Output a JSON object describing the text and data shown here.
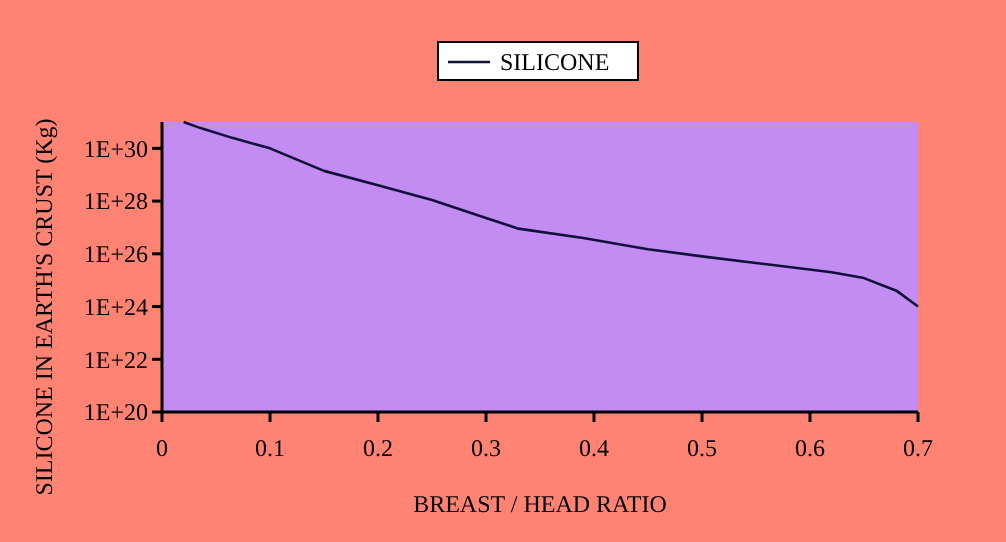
{
  "chart_data": {
    "type": "line",
    "xlabel": "BREAST / HEAD RATIO",
    "ylabel": "SILICONE IN EARTH'S CRUST (Kg)",
    "log": "y",
    "legend": "top",
    "grid": false,
    "xlim": [
      0,
      0.7
    ],
    "xticks": [
      0,
      0.1,
      0.2,
      0.3,
      0.4,
      0.5,
      0.6,
      0.7
    ],
    "ylim": [
      1e+20,
      1e+31
    ],
    "yticks": [
      {
        "value": 1e+20,
        "label": "1E+20"
      },
      {
        "value": 1e+22,
        "label": "1E+22"
      },
      {
        "value": 1e+24,
        "label": "1E+24"
      },
      {
        "value": 1e+26,
        "label": "1E+26"
      },
      {
        "value": 1e+28,
        "label": "1E+28"
      },
      {
        "value": 1e+30,
        "label": "1E+30"
      }
    ],
    "series": [
      {
        "name": "SILICONE",
        "color": "#10103a",
        "x": [
          0.02,
          0.035,
          0.065,
          0.1,
          0.15,
          0.2,
          0.25,
          0.3,
          0.33,
          0.39,
          0.45,
          0.5,
          0.56,
          0.62,
          0.65,
          0.68,
          0.7
        ],
        "values": [
          1e+31,
          6e+30,
          2.5e+30,
          1e+30,
          1.4e+29,
          4e+28,
          1.1e+28,
          2.3e+27,
          9e+26,
          4e+26,
          1.5e+26,
          8e+25,
          4e+25,
          2e+25,
          1.2e+25,
          4e+24,
          1e+24
        ]
      }
    ]
  }
}
